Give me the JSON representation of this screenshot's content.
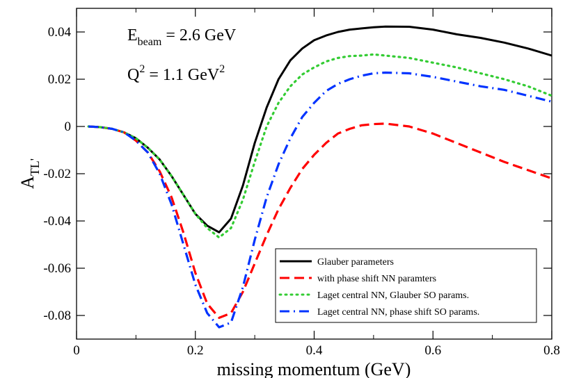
{
  "chart_data": {
    "type": "line",
    "xlabel": "missing momentum (GeV)",
    "ylabel": {
      "main": "A",
      "sub": "TL'"
    },
    "xlim": [
      0,
      0.8
    ],
    "ylim": [
      -0.09,
      0.05
    ],
    "x_ticks": [
      {
        "v": 0,
        "label": "0"
      },
      {
        "v": 0.2,
        "label": "0.2"
      },
      {
        "v": 0.4,
        "label": "0.4"
      },
      {
        "v": 0.6,
        "label": "0.6"
      },
      {
        "v": 0.8,
        "label": "0.8"
      }
    ],
    "y_ticks": [
      {
        "v": 0.04,
        "label": "0.04"
      },
      {
        "v": 0.02,
        "label": "0.02"
      },
      {
        "v": 0,
        "label": "0"
      },
      {
        "v": -0.02,
        "label": "-0.02"
      },
      {
        "v": -0.04,
        "label": "-0.04"
      },
      {
        "v": -0.06,
        "label": "-0.06"
      },
      {
        "v": -0.08,
        "label": "-0.08"
      }
    ],
    "grid": false,
    "legend_position": "bottom-right",
    "annotations": {
      "beam": {
        "main": "E",
        "sub": "beam",
        "rest": " = 2.6 GeV"
      },
      "q2": {
        "main": "Q",
        "sup": "2",
        "rest": " = 1.1 GeV",
        "sup2": "2"
      }
    },
    "series": [
      {
        "name": "Glauber parameters",
        "color": "#000000",
        "style": "solid",
        "x": [
          0.02,
          0.04,
          0.06,
          0.08,
          0.1,
          0.12,
          0.14,
          0.16,
          0.18,
          0.2,
          0.22,
          0.24,
          0.26,
          0.28,
          0.3,
          0.32,
          0.34,
          0.36,
          0.38,
          0.4,
          0.42,
          0.44,
          0.46,
          0.48,
          0.5,
          0.52,
          0.56,
          0.6,
          0.64,
          0.68,
          0.72,
          0.76,
          0.8
        ],
        "y": [
          0.0,
          -0.0003,
          -0.001,
          -0.0025,
          -0.005,
          -0.009,
          -0.014,
          -0.021,
          -0.029,
          -0.037,
          -0.042,
          -0.0448,
          -0.039,
          -0.025,
          -0.007,
          0.008,
          0.02,
          0.028,
          0.033,
          0.0365,
          0.0385,
          0.04,
          0.041,
          0.0415,
          0.042,
          0.0423,
          0.0422,
          0.041,
          0.039,
          0.0375,
          0.0355,
          0.033,
          0.03
        ]
      },
      {
        "name": "with phase shift NN paramters",
        "color": "#ff0000",
        "style": "dashed",
        "x": [
          0.02,
          0.04,
          0.06,
          0.08,
          0.1,
          0.12,
          0.14,
          0.16,
          0.18,
          0.2,
          0.22,
          0.24,
          0.26,
          0.28,
          0.3,
          0.32,
          0.34,
          0.36,
          0.38,
          0.4,
          0.42,
          0.44,
          0.46,
          0.48,
          0.5,
          0.52,
          0.56,
          0.6,
          0.64,
          0.68,
          0.72,
          0.76,
          0.8
        ],
        "y": [
          0.0,
          -0.0003,
          -0.001,
          -0.0025,
          -0.006,
          -0.011,
          -0.019,
          -0.03,
          -0.045,
          -0.062,
          -0.075,
          -0.081,
          -0.079,
          -0.07,
          -0.058,
          -0.046,
          -0.035,
          -0.026,
          -0.018,
          -0.012,
          -0.007,
          -0.003,
          -0.001,
          0.0005,
          0.001,
          0.0012,
          0.0,
          -0.003,
          -0.007,
          -0.011,
          -0.015,
          -0.0185,
          -0.022
        ]
      },
      {
        "name": "Laget central NN, Glauber SO params.",
        "color": "#33cc33",
        "style": "dotted",
        "x": [
          0.02,
          0.04,
          0.06,
          0.08,
          0.1,
          0.12,
          0.14,
          0.16,
          0.18,
          0.2,
          0.22,
          0.24,
          0.26,
          0.28,
          0.3,
          0.32,
          0.34,
          0.36,
          0.38,
          0.4,
          0.42,
          0.44,
          0.46,
          0.48,
          0.5,
          0.52,
          0.56,
          0.6,
          0.64,
          0.68,
          0.72,
          0.76,
          0.8
        ],
        "y": [
          0.0,
          -0.0003,
          -0.001,
          -0.0025,
          -0.005,
          -0.009,
          -0.014,
          -0.021,
          -0.029,
          -0.037,
          -0.043,
          -0.047,
          -0.043,
          -0.031,
          -0.015,
          0.0,
          0.01,
          0.017,
          0.022,
          0.025,
          0.0275,
          0.029,
          0.0298,
          0.03,
          0.0305,
          0.03,
          0.029,
          0.027,
          0.025,
          0.0225,
          0.02,
          0.017,
          0.013
        ]
      },
      {
        "name": "Laget central NN, phase shift SO params.",
        "color": "#0033ff",
        "style": "dashdot",
        "x": [
          0.02,
          0.04,
          0.06,
          0.08,
          0.1,
          0.12,
          0.14,
          0.16,
          0.18,
          0.2,
          0.22,
          0.24,
          0.26,
          0.28,
          0.3,
          0.32,
          0.34,
          0.36,
          0.38,
          0.4,
          0.42,
          0.44,
          0.46,
          0.48,
          0.5,
          0.52,
          0.56,
          0.6,
          0.64,
          0.68,
          0.72,
          0.76,
          0.8
        ],
        "y": [
          0.0,
          -0.0003,
          -0.001,
          -0.0025,
          -0.006,
          -0.011,
          -0.02,
          -0.033,
          -0.05,
          -0.067,
          -0.079,
          -0.085,
          -0.083,
          -0.068,
          -0.048,
          -0.03,
          -0.016,
          -0.005,
          0.004,
          0.01,
          0.015,
          0.018,
          0.02,
          0.0215,
          0.0225,
          0.0228,
          0.0225,
          0.021,
          0.019,
          0.017,
          0.0155,
          0.013,
          0.0105
        ]
      }
    ]
  }
}
